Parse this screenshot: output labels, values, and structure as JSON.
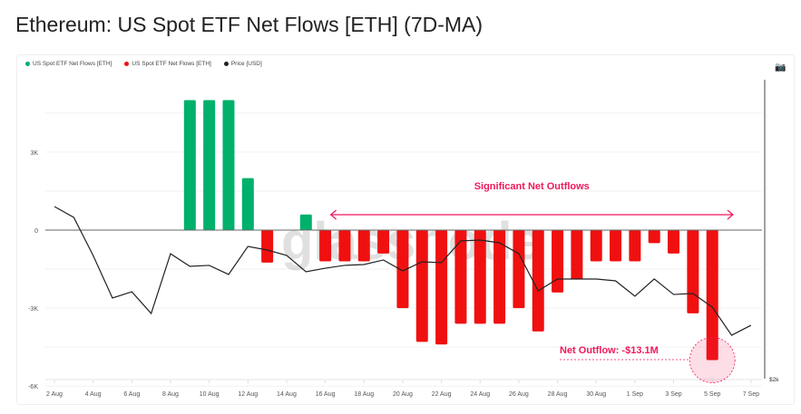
{
  "title": "Ethereum: US Spot ETF Net Flows [ETH] (7D-MA)",
  "legend": [
    {
      "label": "US Spot ETF Net Flows [ETH]",
      "color": "#00b06b"
    },
    {
      "label": "US Spot ETF Net Flows [ETH]",
      "color": "#f01010"
    },
    {
      "label": "Price [USD]",
      "color": "#222222"
    }
  ],
  "watermark": "glassnode",
  "chart_data": {
    "type": "bar",
    "title": "Ethereum: US Spot ETF Net Flows [ETH] (7D-MA)",
    "x": [
      "2 Aug",
      "3 Aug",
      "4 Aug",
      "5 Aug",
      "6 Aug",
      "7 Aug",
      "8 Aug",
      "9 Aug",
      "10 Aug",
      "11 Aug",
      "12 Aug",
      "13 Aug",
      "14 Aug",
      "15 Aug",
      "16 Aug",
      "17 Aug",
      "18 Aug",
      "19 Aug",
      "20 Aug",
      "21 Aug",
      "22 Aug",
      "23 Aug",
      "24 Aug",
      "25 Aug",
      "26 Aug",
      "27 Aug",
      "28 Aug",
      "29 Aug",
      "30 Aug",
      "31 Aug",
      "1 Sep",
      "2 Sep",
      "3 Sep",
      "4 Sep",
      "5 Sep",
      "6 Sep",
      "7 Sep"
    ],
    "xticks": [
      "2 Aug",
      "4 Aug",
      "6 Aug",
      "8 Aug",
      "10 Aug",
      "12 Aug",
      "14 Aug",
      "16 Aug",
      "18 Aug",
      "20 Aug",
      "22 Aug",
      "24 Aug",
      "26 Aug",
      "28 Aug",
      "30 Aug",
      "1 Sep",
      "3 Sep",
      "5 Sep",
      "7 Sep"
    ],
    "series": [
      {
        "name": "US Spot ETF Net Flows [ETH]",
        "unit": "ETH",
        "values": [
          0,
          0,
          0,
          0,
          0,
          0,
          0,
          5000,
          5000,
          5000,
          2000,
          -1250,
          0,
          600,
          -1200,
          -1200,
          -1200,
          -900,
          -3000,
          -4300,
          -4400,
          -3600,
          -3600,
          -3600,
          -3000,
          -3900,
          -2400,
          -1900,
          -1200,
          -1200,
          -1200,
          -500,
          -900,
          -3200,
          -5000,
          0,
          0
        ]
      },
      {
        "name": "Price [USD]",
        "unit": "USD",
        "axis": "right",
        "values": [
          3212,
          3136,
          2868,
          2568,
          2612,
          2459,
          2880,
          2791,
          2798,
          2734,
          2931,
          2906,
          2868,
          2753,
          2778,
          2798,
          2804,
          2836,
          2759,
          2823,
          2817,
          2970,
          2976,
          2957,
          2880,
          2619,
          2702,
          2702,
          2702,
          2689,
          2581,
          2702,
          2593,
          2600,
          2504,
          2306,
          2376
        ]
      }
    ],
    "colors": {
      "positive": "#00b06b",
      "negative": "#f01010",
      "price": "#222222",
      "annotation": "#f0185a"
    },
    "yticks": [
      {
        "v": 3000,
        "label": "3K"
      },
      {
        "v": 0,
        "label": "0"
      },
      {
        "v": -3000,
        "label": "-3K"
      },
      {
        "v": -6000,
        "label": "-6K"
      }
    ],
    "ylim": [
      -6000,
      6000
    ],
    "y2tick": {
      "v": 2000,
      "label": "$2k"
    },
    "y2lim": [
      2000,
      4100
    ],
    "grid": true,
    "legend_position": "top-left",
    "annotations": {
      "range_label": "Significant Net Outflows",
      "range_from": "16 Aug",
      "range_to": "7 Sep",
      "point_label": "Net Outflow: -$13.1M",
      "point_at": "5 Sep"
    }
  }
}
